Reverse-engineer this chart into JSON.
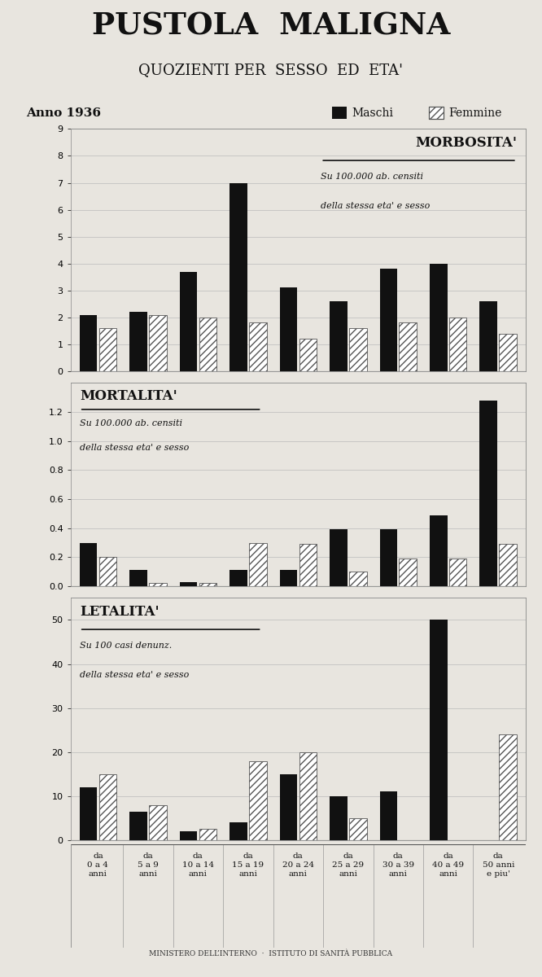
{
  "title_main": "PUSTOLA  MALIGNA",
  "title_sub": "QUOZIENTI PER  SESSO  ED  ETA'",
  "anno": "Anno 1936",
  "legend_maschi": "Maschi",
  "legend_femmine": "Femmine",
  "footer": "MINISTERO DELL’INTERNO  ·  ISTITUTO DI SANITÀ PUBBLICA",
  "age_labels": [
    "da\n0 a 4\nanni",
    "da\n5 a 9\nanni",
    "da\n10 a 14\nanni",
    "da\n15 a 19\nanni",
    "da\n20 a 24\nanni",
    "da\n25 a 29\nanni",
    "da\n30 a 39\nanni",
    "da\n40 a 49\nanni",
    "da\n50 anni\ne piu'"
  ],
  "morbosita": {
    "title": "MORBOSITA'",
    "subtitle1": "Su 100.000 ab. censiti",
    "subtitle2": "della stessa eta' e sesso",
    "maschi": [
      2.1,
      2.2,
      3.7,
      7.0,
      3.1,
      2.6,
      3.8,
      4.0,
      2.6
    ],
    "femmine": [
      1.6,
      2.1,
      2.0,
      1.8,
      1.2,
      1.6,
      1.8,
      2.0,
      1.4
    ],
    "ylim": [
      0,
      9
    ],
    "yticks": [
      0,
      1,
      2,
      3,
      4,
      5,
      6,
      7,
      8,
      9
    ],
    "title_pos": "right"
  },
  "mortalita": {
    "title": "MORTALITA'",
    "subtitle1": "Su 100.000 ab. censiti",
    "subtitle2": "della stessa eta' e sesso",
    "maschi": [
      0.3,
      0.11,
      0.03,
      0.11,
      0.11,
      0.39,
      0.39,
      0.49,
      1.28
    ],
    "femmine": [
      0.2,
      0.02,
      0.02,
      0.3,
      0.29,
      0.1,
      0.19,
      0.19,
      0.29
    ],
    "ylim": [
      0,
      1.4
    ],
    "yticks": [
      0,
      0.2,
      0.4,
      0.6,
      0.8,
      1.0,
      1.2
    ],
    "title_pos": "left"
  },
  "letalita": {
    "title": "LETALITA'",
    "subtitle1": "Su 100 casi denunz.",
    "subtitle2": "della stessa eta' e sesso",
    "maschi": [
      12.0,
      6.5,
      2.0,
      4.0,
      15.0,
      10.0,
      11.0,
      50.0,
      0.0
    ],
    "femmine": [
      15.0,
      8.0,
      2.5,
      18.0,
      20.0,
      5.0,
      0.0,
      0.0,
      24.0
    ],
    "ylim": [
      0,
      55
    ],
    "yticks": [
      0,
      10,
      20,
      30,
      40,
      50
    ],
    "title_pos": "left"
  },
  "bg_color": "#e8e5df",
  "bar_color_maschi": "#111111",
  "hatch_femmine": "////",
  "n_groups": 9,
  "bar_width": 0.35,
  "bar_gap": 0.04
}
